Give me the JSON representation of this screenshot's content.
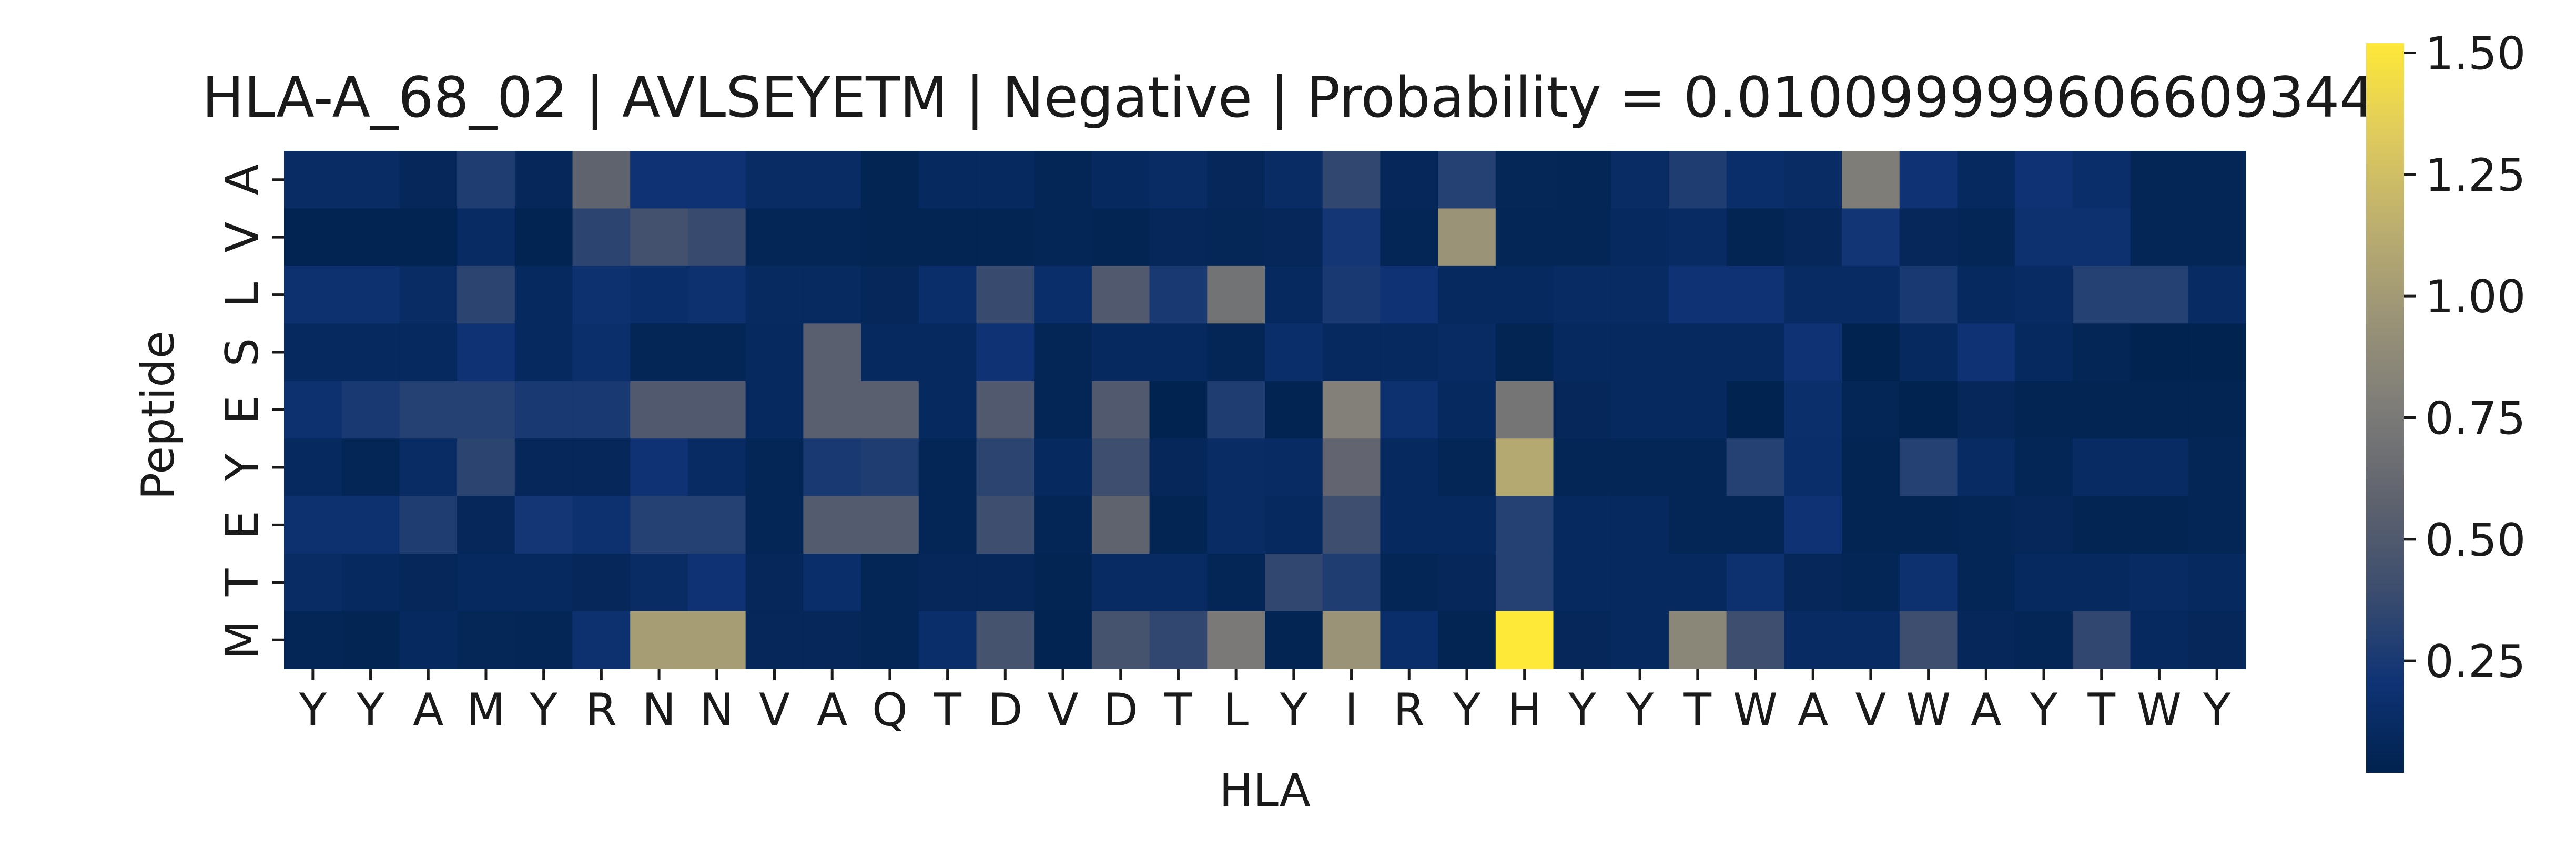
{
  "chart_data": {
    "type": "heatmap",
    "title": "HLA-A_68_02 | AVLSEYETM | Negative | Probability = 0.010099999606609344",
    "xlabel": "HLA",
    "ylabel": "Peptide",
    "x_tick_labels": [
      "Y",
      "Y",
      "A",
      "M",
      "Y",
      "R",
      "N",
      "N",
      "V",
      "A",
      "Q",
      "T",
      "D",
      "V",
      "D",
      "T",
      "L",
      "Y",
      "I",
      "R",
      "Y",
      "H",
      "Y",
      "Y",
      "T",
      "W",
      "A",
      "V",
      "W",
      "A",
      "Y",
      "T",
      "W",
      "Y"
    ],
    "y_tick_labels": [
      "A",
      "V",
      "L",
      "S",
      "E",
      "Y",
      "E",
      "T",
      "M"
    ],
    "colormap": "cividis",
    "colorbar": {
      "vmin": 0.02,
      "vmax": 1.52,
      "ticks": [
        0.25,
        0.5,
        0.75,
        1.0,
        1.25,
        1.5
      ],
      "tick_labels": [
        "0.25",
        "0.50",
        "0.75",
        "1.00",
        "1.25",
        "1.50"
      ]
    },
    "values": [
      [
        0.13,
        0.13,
        0.08,
        0.28,
        0.08,
        0.58,
        0.2,
        0.2,
        0.13,
        0.13,
        0.05,
        0.1,
        0.1,
        0.06,
        0.1,
        0.13,
        0.08,
        0.13,
        0.35,
        0.08,
        0.3,
        0.07,
        0.06,
        0.13,
        0.28,
        0.15,
        0.13,
        0.78,
        0.2,
        0.1,
        0.2,
        0.15,
        0.06,
        0.06
      ],
      [
        0.04,
        0.04,
        0.04,
        0.12,
        0.04,
        0.33,
        0.43,
        0.38,
        0.06,
        0.06,
        0.05,
        0.05,
        0.05,
        0.06,
        0.05,
        0.08,
        0.07,
        0.08,
        0.23,
        0.06,
        0.95,
        0.06,
        0.06,
        0.1,
        0.12,
        0.05,
        0.08,
        0.22,
        0.08,
        0.06,
        0.18,
        0.18,
        0.06,
        0.06
      ],
      [
        0.18,
        0.18,
        0.13,
        0.33,
        0.1,
        0.18,
        0.15,
        0.18,
        0.11,
        0.11,
        0.08,
        0.15,
        0.38,
        0.15,
        0.5,
        0.25,
        0.7,
        0.1,
        0.25,
        0.2,
        0.1,
        0.1,
        0.12,
        0.12,
        0.2,
        0.2,
        0.12,
        0.12,
        0.25,
        0.1,
        0.12,
        0.3,
        0.3,
        0.12
      ],
      [
        0.1,
        0.1,
        0.1,
        0.2,
        0.1,
        0.16,
        0.06,
        0.06,
        0.1,
        0.55,
        0.1,
        0.1,
        0.2,
        0.06,
        0.1,
        0.1,
        0.06,
        0.15,
        0.1,
        0.1,
        0.12,
        0.05,
        0.1,
        0.1,
        0.1,
        0.1,
        0.2,
        0.03,
        0.1,
        0.2,
        0.1,
        0.06,
        0.03,
        0.03
      ],
      [
        0.18,
        0.25,
        0.3,
        0.3,
        0.25,
        0.25,
        0.5,
        0.5,
        0.1,
        0.55,
        0.55,
        0.1,
        0.5,
        0.06,
        0.5,
        0.03,
        0.28,
        0.04,
        0.8,
        0.18,
        0.1,
        0.72,
        0.08,
        0.1,
        0.1,
        0.03,
        0.16,
        0.06,
        0.03,
        0.08,
        0.05,
        0.05,
        0.05,
        0.05
      ],
      [
        0.1,
        0.06,
        0.13,
        0.33,
        0.08,
        0.08,
        0.2,
        0.12,
        0.06,
        0.25,
        0.28,
        0.06,
        0.33,
        0.1,
        0.4,
        0.08,
        0.13,
        0.12,
        0.6,
        0.1,
        0.06,
        1.1,
        0.06,
        0.06,
        0.06,
        0.3,
        0.15,
        0.05,
        0.3,
        0.12,
        0.06,
        0.12,
        0.12,
        0.06
      ],
      [
        0.18,
        0.18,
        0.28,
        0.08,
        0.23,
        0.18,
        0.3,
        0.3,
        0.06,
        0.52,
        0.52,
        0.06,
        0.4,
        0.06,
        0.58,
        0.05,
        0.13,
        0.1,
        0.4,
        0.1,
        0.1,
        0.3,
        0.1,
        0.1,
        0.06,
        0.06,
        0.2,
        0.05,
        0.05,
        0.06,
        0.08,
        0.05,
        0.05,
        0.06
      ],
      [
        0.13,
        0.1,
        0.08,
        0.1,
        0.1,
        0.08,
        0.13,
        0.2,
        0.08,
        0.15,
        0.06,
        0.08,
        0.08,
        0.05,
        0.12,
        0.12,
        0.06,
        0.35,
        0.28,
        0.06,
        0.08,
        0.3,
        0.1,
        0.1,
        0.1,
        0.18,
        0.08,
        0.06,
        0.18,
        0.06,
        0.1,
        0.1,
        0.12,
        0.1
      ],
      [
        0.06,
        0.05,
        0.1,
        0.07,
        0.06,
        0.18,
        1.02,
        1.02,
        0.08,
        0.08,
        0.06,
        0.15,
        0.45,
        0.04,
        0.45,
        0.35,
        0.75,
        0.05,
        0.95,
        0.15,
        0.05,
        1.52,
        0.08,
        0.1,
        0.85,
        0.4,
        0.12,
        0.12,
        0.4,
        0.08,
        0.06,
        0.35,
        0.1,
        0.08
      ]
    ]
  }
}
